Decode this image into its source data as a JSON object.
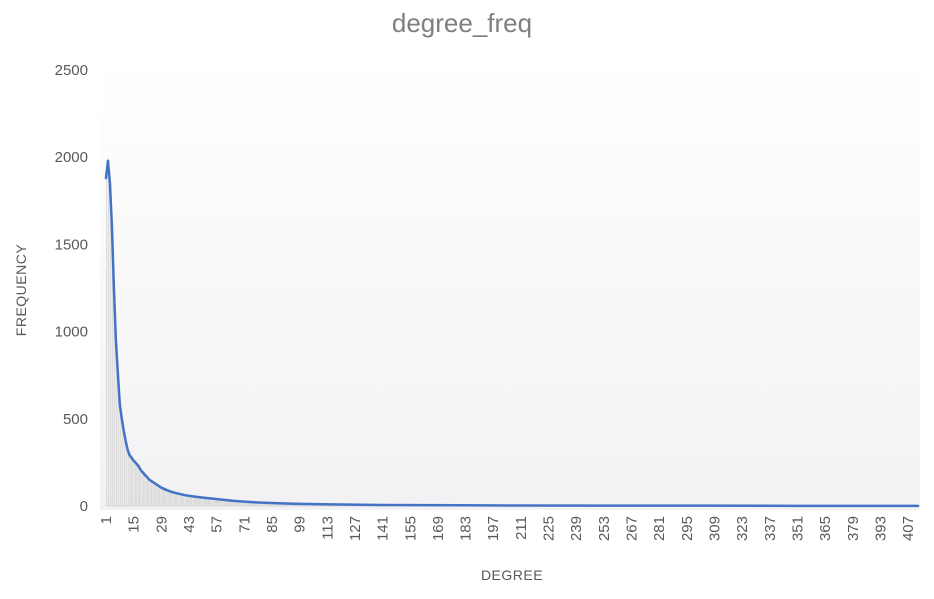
{
  "chart_data": {
    "type": "line",
    "title": "degree_freq",
    "xlabel": "DEGREE",
    "ylabel": "FREQUENCY",
    "xlim": [
      1,
      412
    ],
    "ylim": [
      0,
      2500
    ],
    "y_ticks": [
      0,
      500,
      1000,
      1500,
      2000,
      2500
    ],
    "x_ticks": [
      1,
      15,
      29,
      43,
      57,
      71,
      85,
      99,
      113,
      127,
      141,
      155,
      169,
      183,
      197,
      211,
      225,
      239,
      253,
      267,
      281,
      295,
      309,
      323,
      337,
      351,
      365,
      379,
      393,
      407
    ],
    "grid": false,
    "legend": "none",
    "line_color": "#4472c4",
    "bar_color": "#d9d9d9",
    "series": [
      {
        "x": [
          1,
          2,
          3,
          4,
          5,
          6,
          7,
          8,
          9,
          10,
          11,
          12,
          13,
          15,
          17,
          19,
          21,
          23,
          25,
          27,
          29,
          32,
          35,
          38,
          41,
          45,
          50,
          55,
          60,
          65,
          71,
          78,
          85,
          92,
          99,
          110,
          125,
          140,
          160,
          180,
          210,
          250,
          300,
          350,
          412
        ],
        "y": [
          1880,
          1980,
          1850,
          1600,
          1250,
          950,
          760,
          580,
          500,
          430,
          370,
          320,
          290,
          260,
          235,
          200,
          175,
          150,
          135,
          120,
          105,
          90,
          78,
          70,
          62,
          55,
          48,
          42,
          36,
          30,
          25,
          20,
          17,
          14,
          12,
          10,
          8,
          6,
          5,
          4,
          3,
          2,
          2,
          1,
          1
        ]
      }
    ]
  }
}
